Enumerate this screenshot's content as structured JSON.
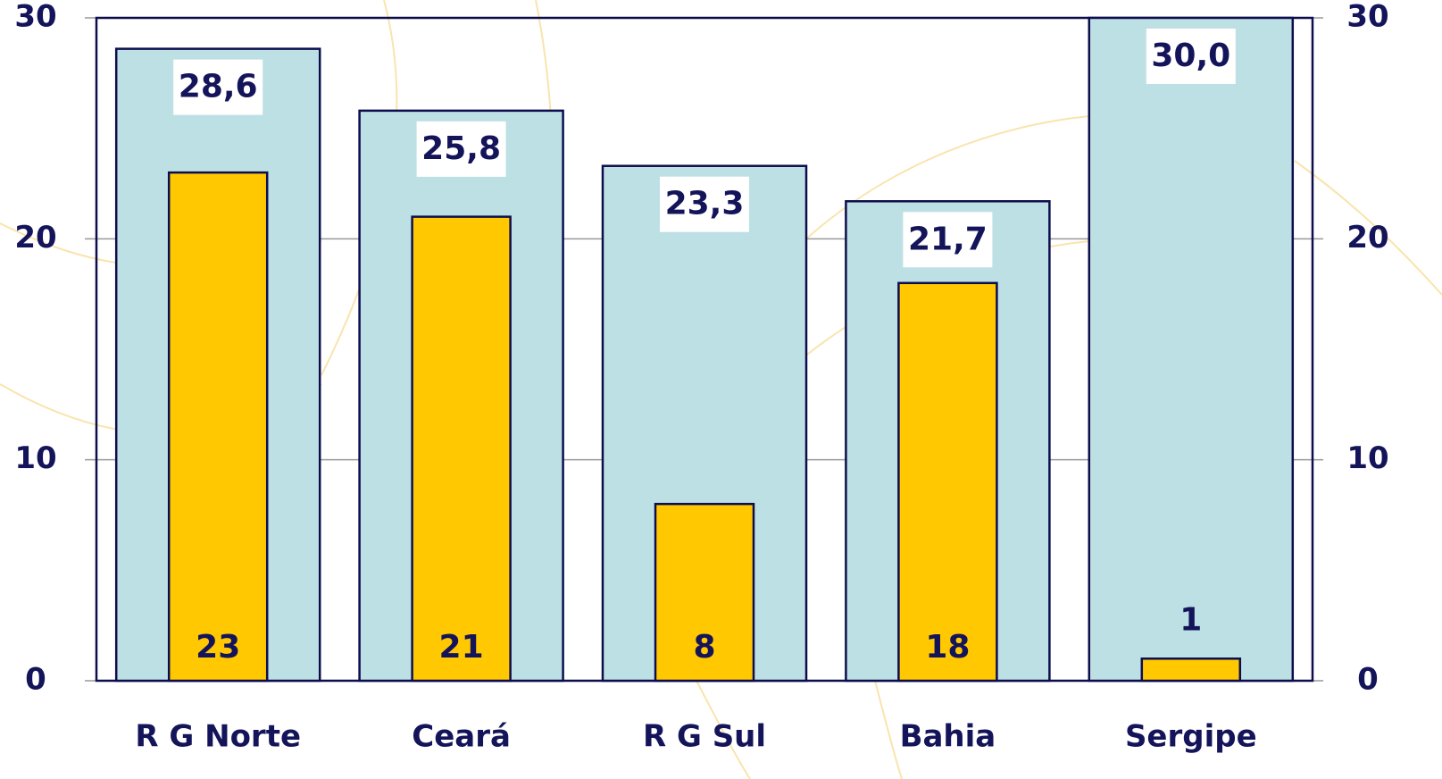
{
  "chart_data": {
    "type": "bar",
    "categories": [
      "R G Norte",
      "Ceará",
      "R G Sul",
      "Bahia",
      "Sergipe"
    ],
    "series": [
      {
        "color": "#bde0e4",
        "values": [
          28.6,
          25.8,
          23.3,
          21.7,
          30.0
        ],
        "value_labels": [
          "28,6",
          "25,8",
          "23,3",
          "21,7",
          "30,0"
        ]
      },
      {
        "color": "#ffc800",
        "axis": "y2",
        "values": [
          23,
          21,
          8,
          18,
          1
        ]
      }
    ],
    "ylim": [
      0,
      30
    ],
    "yticks": [
      0,
      10,
      20,
      30
    ],
    "y2lim": [
      0,
      30
    ],
    "y2ticks": [
      0,
      10,
      20,
      30
    ],
    "grid": true
  }
}
